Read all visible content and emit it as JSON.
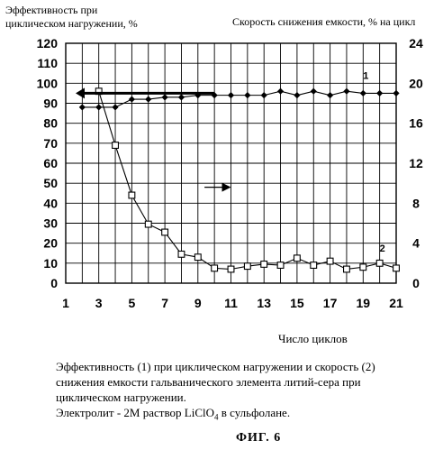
{
  "chart_data": {
    "type": "line",
    "ylabel_left_lines": [
      "Эффективность  при",
      "циклическом нагружении, %"
    ],
    "ylabel_right": "Скорость снижения емкости, % на цикл",
    "xlabel": "Число циклов",
    "x_ticks": [
      "1",
      "3",
      "5",
      "7",
      "9",
      "11",
      "13",
      "15",
      "17",
      "19",
      "21"
    ],
    "y_left_ticks": [
      "0",
      "10",
      "20",
      "30",
      "40",
      "50",
      "60",
      "70",
      "80",
      "90",
      "100",
      "110",
      "120"
    ],
    "y_right_ticks": [
      "0",
      "4",
      "8",
      "12",
      "16",
      "20",
      "24"
    ],
    "xlim": [
      1,
      21
    ],
    "ylim_left": [
      0,
      120
    ],
    "ylim_right": [
      0,
      24
    ],
    "grid": true,
    "series": [
      {
        "name": "1",
        "axis": "left",
        "marker": "diamond",
        "x": [
          2,
          3,
          4,
          5,
          6,
          7,
          8,
          9,
          10,
          11,
          12,
          13,
          14,
          15,
          16,
          17,
          18,
          19,
          20,
          21
        ],
        "y": [
          88,
          88,
          88,
          92,
          92,
          93,
          93,
          94,
          94,
          94,
          94,
          94,
          96,
          94,
          96,
          94,
          96,
          95,
          95,
          95
        ]
      },
      {
        "name": "2",
        "axis": "right",
        "marker": "square",
        "x": [
          3,
          4,
          5,
          6,
          7,
          8,
          9,
          10,
          11,
          12,
          13,
          14,
          15,
          16,
          17,
          18,
          19,
          20,
          21
        ],
        "y": [
          19.2,
          13.8,
          8.8,
          5.9,
          5.1,
          2.9,
          2.6,
          1.5,
          1.4,
          1.7,
          1.9,
          1.8,
          2.5,
          1.8,
          2.2,
          1.4,
          1.6,
          2.0,
          1.5
        ]
      }
    ],
    "annotations": [
      {
        "type": "arrow",
        "direction": "left",
        "x_from": 10,
        "x_to": 1.6,
        "y_left": 95,
        "bold": true
      },
      {
        "type": "arrow",
        "direction": "right",
        "x_from": 9.4,
        "x_to": 11,
        "y_left": 48
      }
    ]
  },
  "caption": {
    "line1": "Эффективность (1) при циклическом нагружении  и скорость (2)",
    "line2": "снижения емкости гальванического элемента литий-сера при",
    "line3": "циклическом нагружении.",
    "line4_prefix": "Электролит - 2М раствор LiClO",
    "line4_sub": "4",
    "line4_suffix": " в сульфолане."
  },
  "figure_label": "ФИГ. 6"
}
